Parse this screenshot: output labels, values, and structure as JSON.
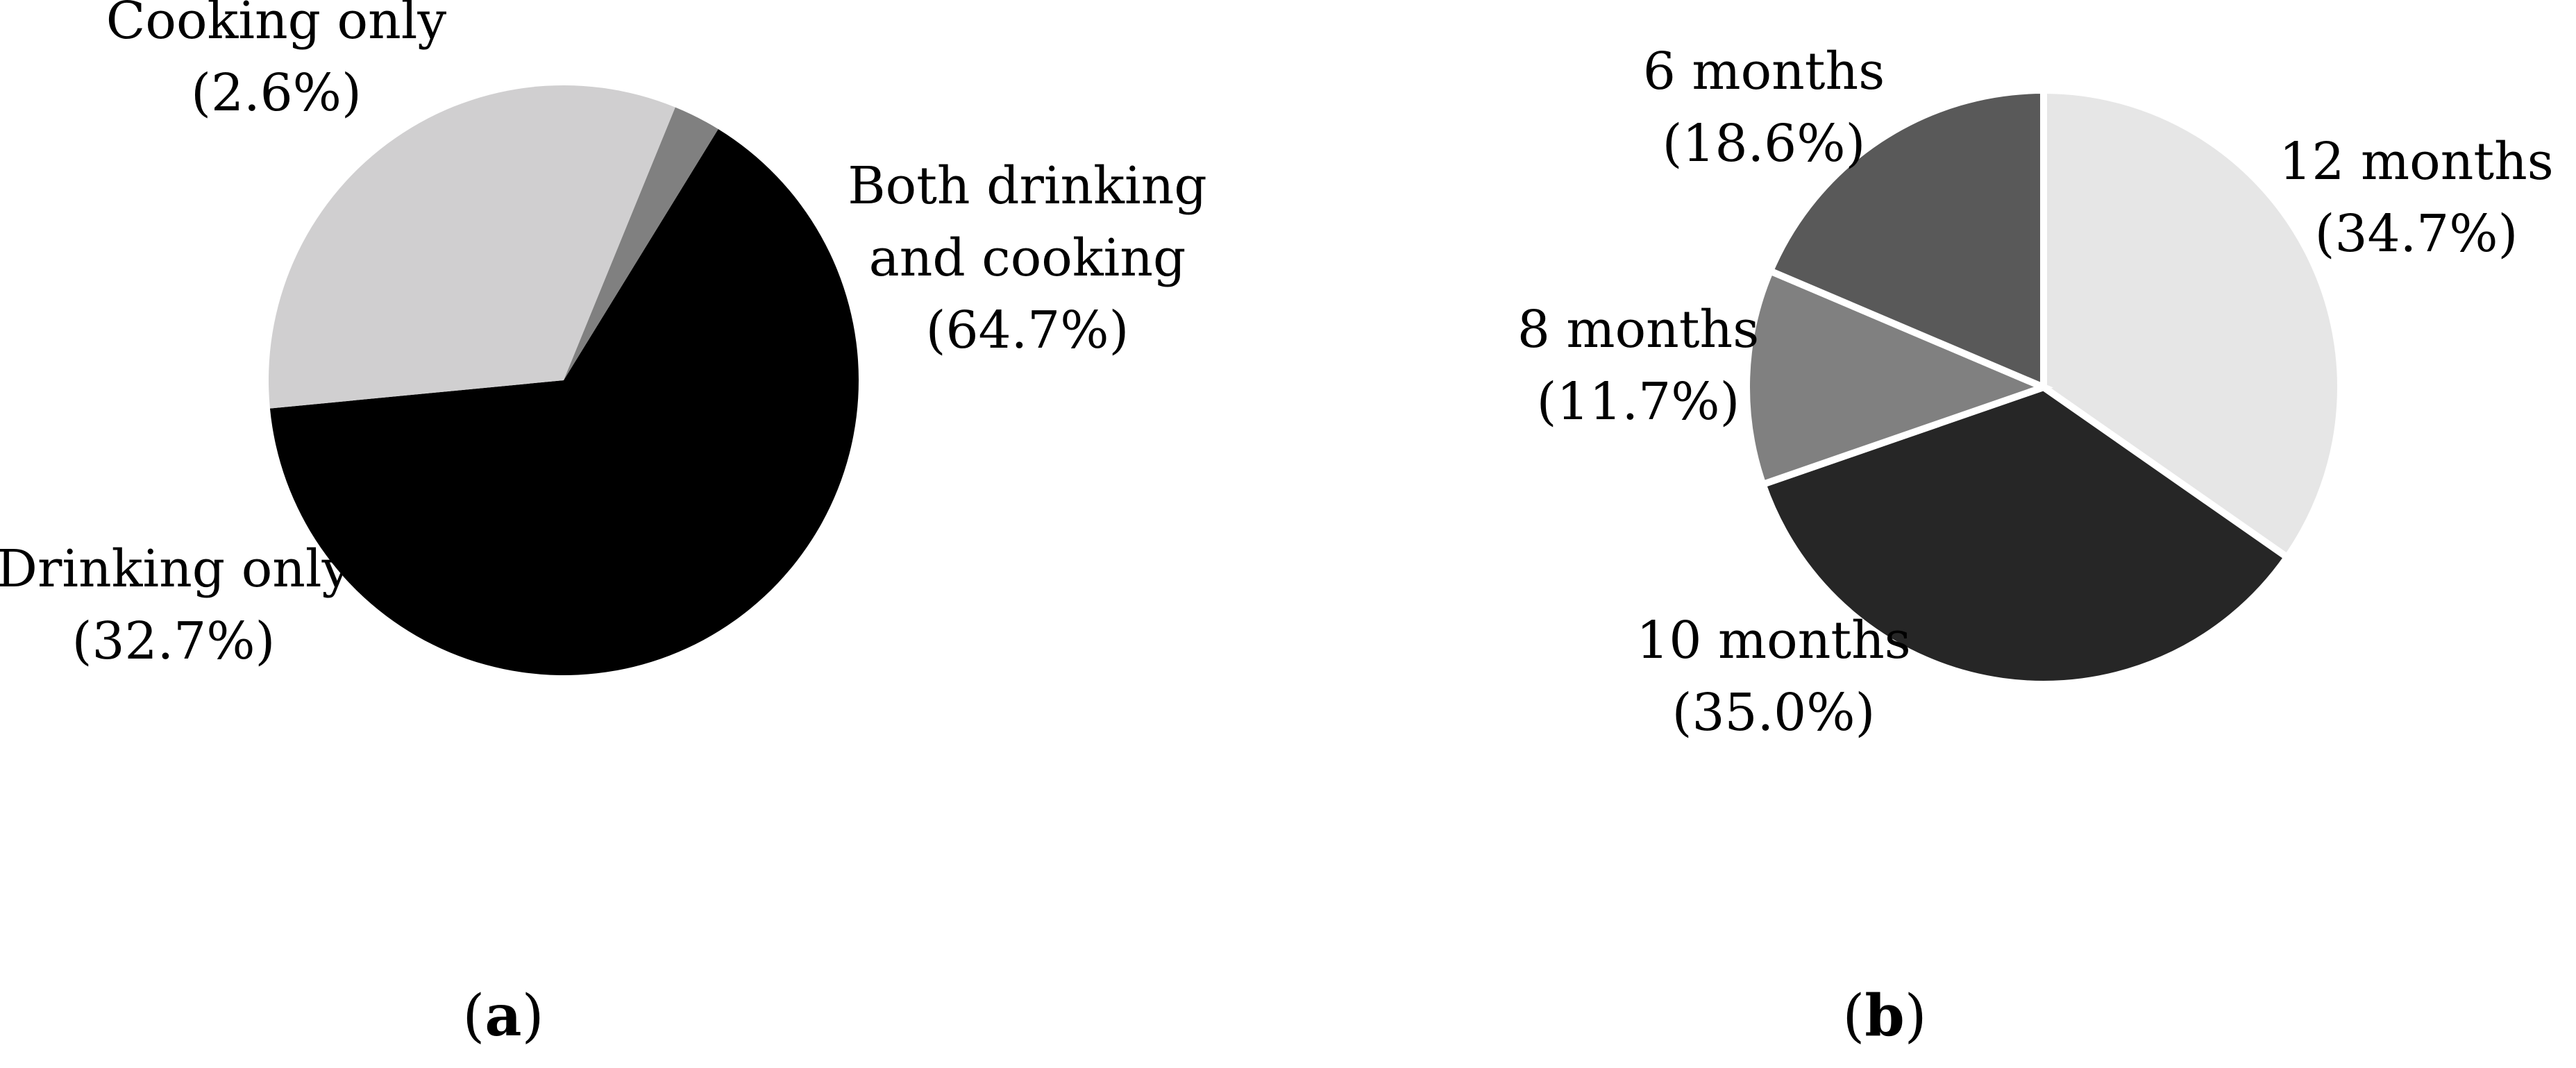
{
  "chart_data": [
    {
      "type": "pie",
      "panel": "a",
      "categories": [
        "Both drinking and cooking",
        "Drinking only",
        "Cooking only"
      ],
      "values": [
        64.7,
        32.7,
        2.6
      ],
      "colors": [
        "#000000",
        "#d0cfd0",
        "#808080"
      ],
      "labels": [
        [
          "Both drinking",
          "and cooking",
          "(64.7%)"
        ],
        [
          "Drinking only",
          "(32.7%)"
        ],
        [
          "Cooking only",
          "(2.6%)"
        ]
      ]
    },
    {
      "type": "pie",
      "panel": "b",
      "categories": [
        "12 months",
        "10 months",
        "8 months",
        "6 months"
      ],
      "values": [
        34.7,
        35.0,
        11.7,
        18.6
      ],
      "colors": [
        "#e6e6e6",
        "#262626",
        "#808080",
        "#595959"
      ],
      "labels": [
        [
          "12 months",
          "(34.7%)"
        ],
        [
          "10 months",
          "(35.0%)"
        ],
        [
          "8 months",
          "(11.7%)"
        ],
        [
          "6 months",
          "(18.6%)"
        ]
      ]
    }
  ],
  "captions": [
    {
      "open": "(",
      "letter": "a",
      "close": ")"
    },
    {
      "open": "(",
      "letter": "b",
      "close": ")"
    }
  ]
}
